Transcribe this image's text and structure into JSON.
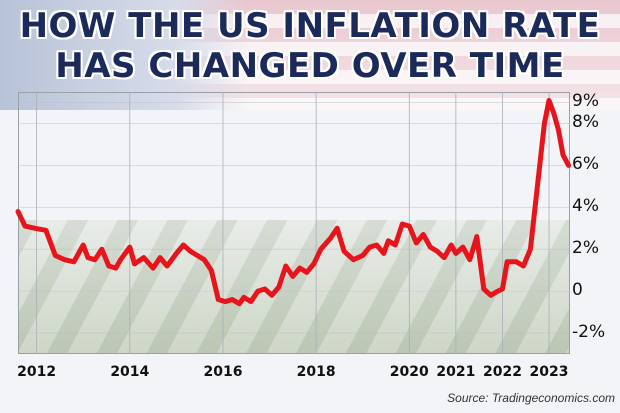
{
  "header": {
    "title_line1": "HOW THE US INFLATION RATE",
    "title_line2": "HAS CHANGED OVER TIME"
  },
  "source": "Source: Tradingeconomics.com",
  "chart_data": {
    "type": "line",
    "title": "HOW THE US INFLATION RATE HAS CHANGED OVER TIME",
    "xlabel": "",
    "ylabel": "",
    "ylim": [
      -3,
      9.5
    ],
    "xlim": [
      2011.6,
      2023.45
    ],
    "grid": true,
    "line_color": "#e8141c",
    "y_ticks": [
      {
        "value": 9,
        "label": "9%"
      },
      {
        "value": 8,
        "label": "8%"
      },
      {
        "value": 6,
        "label": "6%"
      },
      {
        "value": 4,
        "label": "4%"
      },
      {
        "value": 2,
        "label": "2%"
      },
      {
        "value": 0,
        "label": "0"
      },
      {
        "value": -2,
        "label": "-2%"
      }
    ],
    "x_ticks": [
      {
        "value": 2012,
        "label": "2012"
      },
      {
        "value": 2014,
        "label": "2014"
      },
      {
        "value": 2016,
        "label": "2016"
      },
      {
        "value": 2018,
        "label": "2018"
      },
      {
        "value": 2020,
        "label": "2020"
      },
      {
        "value": 2021,
        "label": "2021"
      },
      {
        "value": 2022,
        "label": "2022"
      },
      {
        "value": 2023,
        "label": "2023"
      }
    ],
    "series": [
      {
        "x": [
          2011.6,
          2011.75,
          2011.95,
          2012.2,
          2012.4,
          2012.6,
          2012.8,
          2013.0,
          2013.1,
          2013.25,
          2013.4,
          2013.55,
          2013.7,
          2013.8,
          2014.0,
          2014.1,
          2014.3,
          2014.5,
          2014.65,
          2014.8,
          2015.0,
          2015.15,
          2015.3,
          2015.45,
          2015.6,
          2015.75,
          2015.9,
          2016.05,
          2016.2,
          2016.35,
          2016.45,
          2016.6,
          2016.75,
          2016.9,
          2017.05,
          2017.2,
          2017.35,
          2017.5,
          2017.65,
          2017.8,
          2017.95,
          2018.1,
          2018.3,
          2018.45,
          2018.6,
          2018.8,
          2019.0,
          2019.15,
          2019.3,
          2019.45,
          2019.55,
          2019.7,
          2019.85,
          2020.0,
          2020.15,
          2020.3,
          2020.45,
          2020.6,
          2020.75,
          2020.9,
          2021.0,
          2021.15,
          2021.3,
          2021.45,
          2021.6,
          2021.75,
          2021.9,
          2022.0,
          2022.1,
          2022.3,
          2022.45,
          2022.6,
          2022.75,
          2022.9,
          2023.0,
          2023.1,
          2023.2,
          2023.3,
          2023.42
        ],
        "y": [
          3.8,
          3.1,
          3.0,
          2.9,
          1.7,
          1.5,
          1.4,
          2.2,
          1.6,
          1.5,
          2.0,
          1.2,
          1.1,
          1.5,
          2.1,
          1.3,
          1.6,
          1.1,
          1.6,
          1.2,
          1.8,
          2.2,
          1.9,
          1.7,
          1.5,
          1.0,
          -0.4,
          -0.5,
          -0.4,
          -0.6,
          -0.3,
          -0.5,
          0.0,
          0.1,
          -0.2,
          0.2,
          1.2,
          0.7,
          1.1,
          0.9,
          1.3,
          2.0,
          2.5,
          3.0,
          1.9,
          1.5,
          1.7,
          2.1,
          2.2,
          1.8,
          2.4,
          2.2,
          3.2,
          3.1,
          2.3,
          2.7,
          2.1,
          1.9,
          1.6,
          2.2,
          1.8,
          2.1,
          1.5,
          2.6,
          0.1,
          -0.2,
          0.0,
          0.1,
          1.4,
          1.4,
          1.2,
          2.0,
          5.0,
          8.0,
          9.1,
          8.5,
          7.7,
          6.5,
          6.0
        ]
      }
    ]
  }
}
